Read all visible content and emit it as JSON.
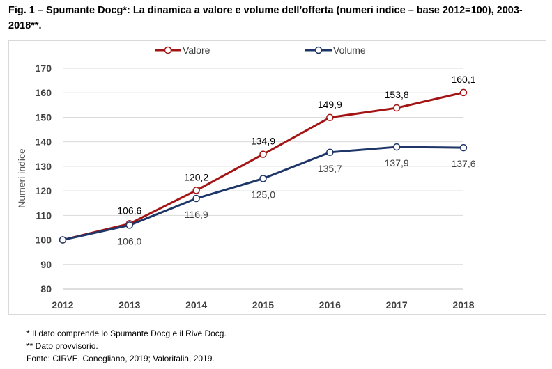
{
  "title": "Fig. 1 – Spumante Docg*: La dinamica a valore e volume dell’offerta (numeri indice – base 2012=100), 2003-2018**.",
  "notes": [
    "* Il dato comprende lo Spumante Docg e il Rive Docg.",
    "** Dato provvisorio.",
    "Fonte: CIRVE, Conegliano, 2019; Valoritalia, 2019."
  ],
  "chart_data": {
    "type": "line",
    "categories": [
      "2012",
      "2013",
      "2014",
      "2015",
      "2016",
      "2017",
      "2018"
    ],
    "series": [
      {
        "name": "Valore",
        "values": [
          100,
          106.6,
          120.2,
          134.9,
          149.9,
          153.8,
          160.1
        ],
        "labels": [
          "",
          "106,6",
          "120,2",
          "134,9",
          "149,9",
          "153,8",
          "160,1"
        ],
        "color": "#a31515",
        "label_position": "above"
      },
      {
        "name": "Volume",
        "values": [
          100,
          106.0,
          116.9,
          125.0,
          135.7,
          137.9,
          137.6
        ],
        "labels": [
          "",
          "106,0",
          "116,9",
          "125,0",
          "135,7",
          "137,9",
          "137,6"
        ],
        "color": "#1f3668",
        "label_position": "below"
      }
    ],
    "ylabel": "Numeri indice",
    "ylim": [
      80,
      170
    ],
    "yticks": [
      "80",
      "90",
      "100",
      "110",
      "120",
      "130",
      "140",
      "150",
      "160",
      "170"
    ],
    "grid": true,
    "legend": "top-center"
  }
}
